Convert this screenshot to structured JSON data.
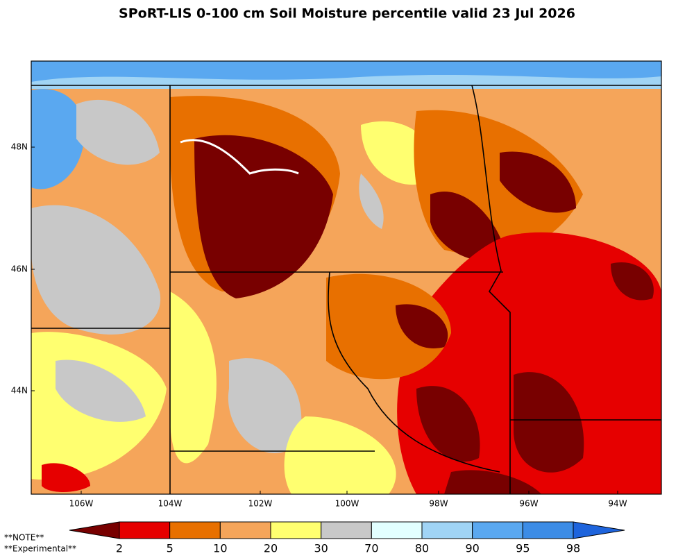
{
  "title": "SPoRT-LIS 0-100 cm Soil Moisture percentile valid 23 Jul 2026",
  "map": {
    "lon_labels": [
      "106W",
      "104W",
      "102W",
      "100W",
      "98W",
      "96W",
      "94W"
    ],
    "lat_labels": [
      "48N",
      "46N",
      "44N"
    ]
  },
  "colorbar": {
    "ticks": [
      2,
      5,
      10,
      20,
      30,
      70,
      80,
      90,
      95,
      98
    ],
    "colors": [
      "#780000",
      "#e60000",
      "#e87000",
      "#f5a55a",
      "#ffff70",
      "#c8c8c8",
      "#e2ffff",
      "#a0d4f5",
      "#5aa8f0",
      "#3c8ce6",
      "#1e64dc"
    ]
  },
  "notes": [
    "**NOTE**",
    "**Experimental**"
  ]
}
